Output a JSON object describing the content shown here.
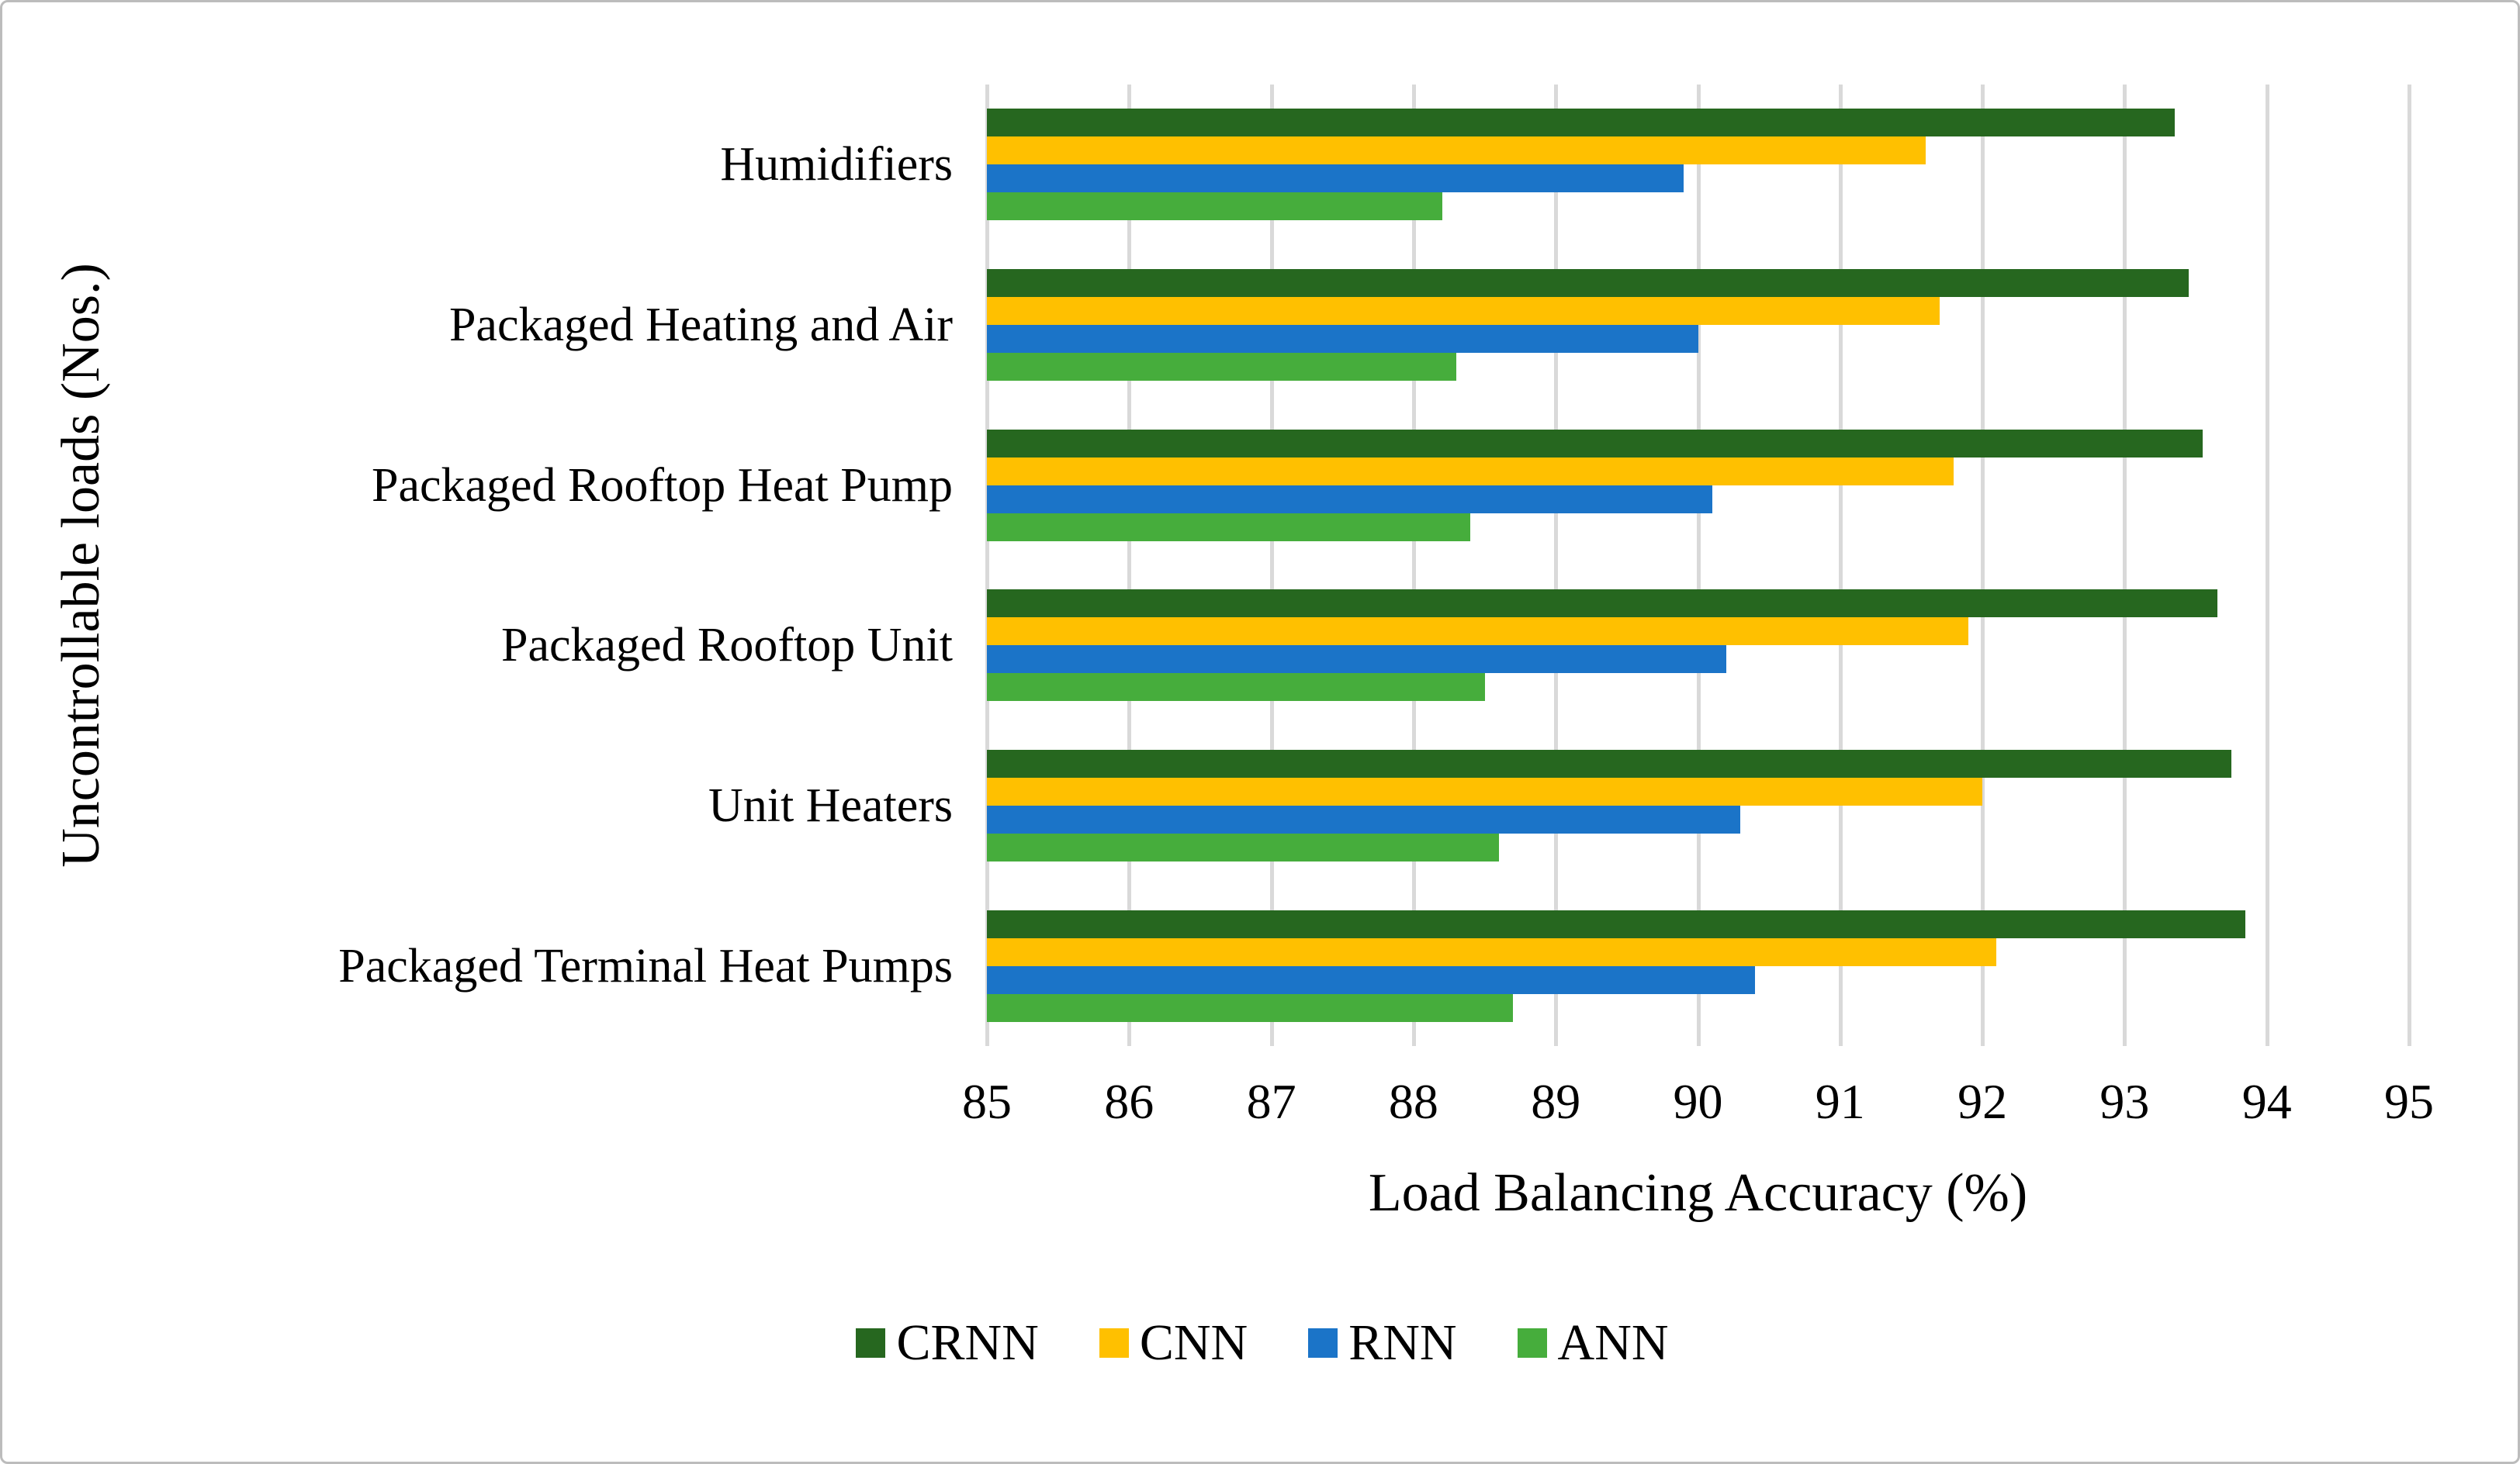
{
  "figure": {
    "x_axis_title": "Load Balancing Accuracy (%)",
    "y_axis_title": "Uncontrollable loads (Nos.)"
  },
  "chart_data": {
    "type": "bar",
    "orientation": "horizontal",
    "title": "",
    "xlabel": "Load Balancing Accuracy (%)",
    "ylabel": "Uncontrollable loads (Nos.)",
    "xlim": [
      85,
      95
    ],
    "xticks": [
      85,
      86,
      87,
      88,
      89,
      90,
      91,
      92,
      93,
      94,
      95
    ],
    "grid": true,
    "gridline_color": "#d9d9d9",
    "legend_position": "bottom",
    "categories": [
      "Humidifiers",
      "Packaged Heating and Air",
      "Packaged Rooftop Heat Pump",
      "Packaged Rooftop Unit",
      "Unit Heaters",
      "Packaged Terminal Heat Pumps"
    ],
    "series": [
      {
        "name": "CRNN",
        "color": "#26671f",
        "values": [
          93.35,
          93.45,
          93.55,
          93.65,
          93.75,
          93.85
        ]
      },
      {
        "name": "CNN",
        "color": "#ffc000",
        "values": [
          91.6,
          91.7,
          91.8,
          91.9,
          92.0,
          92.1
        ]
      },
      {
        "name": "RNN",
        "color": "#1b74c8",
        "values": [
          89.9,
          90.0,
          90.1,
          90.2,
          90.3,
          90.4
        ]
      },
      {
        "name": "ANN",
        "color": "#46ad3c",
        "values": [
          88.2,
          88.3,
          88.4,
          88.5,
          88.6,
          88.7
        ]
      }
    ]
  }
}
